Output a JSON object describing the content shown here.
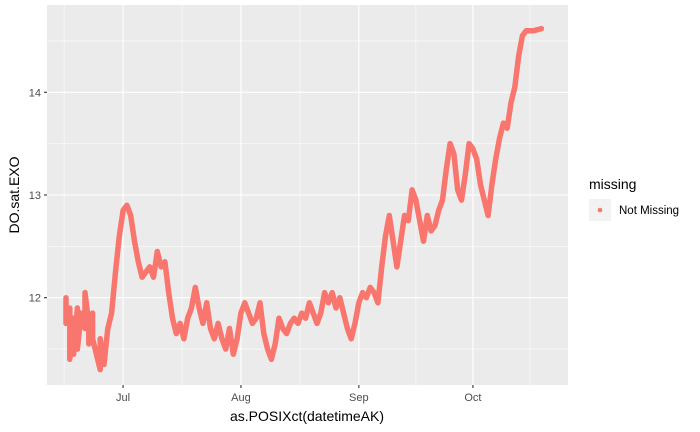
{
  "chart_data": {
    "type": "line",
    "xlabel": "as.POSIXct(datetimeAK)",
    "ylabel": "DO.sat.EXO",
    "x_ticks": [
      "Jul",
      "Aug",
      "Sep",
      "Oct"
    ],
    "x_tick_dates": [
      "2021-07-01",
      "2021-08-01",
      "2021-09-01",
      "2021-10-01"
    ],
    "xlim": [
      "2021-06-11",
      "2021-10-26"
    ],
    "y_ticks": [
      12,
      13,
      14
    ],
    "ylim": [
      11.15,
      14.85
    ],
    "grid": true,
    "legend": {
      "title": "missing",
      "placement": "right",
      "entries": [
        "Not Missing"
      ]
    },
    "series": [
      {
        "name": "Not Missing",
        "color": "#F8766D",
        "points": [
          [
            "2021-06-16",
            12.0
          ],
          [
            "2021-06-16",
            11.75
          ],
          [
            "2021-06-17",
            11.9
          ],
          [
            "2021-06-17",
            11.4
          ],
          [
            "2021-06-18",
            11.8
          ],
          [
            "2021-06-18",
            11.45
          ],
          [
            "2021-06-19",
            11.9
          ],
          [
            "2021-06-19",
            11.5
          ],
          [
            "2021-06-20",
            11.85
          ],
          [
            "2021-06-21",
            11.7
          ],
          [
            "2021-06-21",
            12.05
          ],
          [
            "2021-06-22",
            11.75
          ],
          [
            "2021-06-22",
            11.55
          ],
          [
            "2021-06-23",
            11.85
          ],
          [
            "2021-06-23",
            11.6
          ],
          [
            "2021-06-24",
            11.45
          ],
          [
            "2021-06-25",
            11.3
          ],
          [
            "2021-06-25",
            11.6
          ],
          [
            "2021-06-26",
            11.35
          ],
          [
            "2021-06-27",
            11.7
          ],
          [
            "2021-06-28",
            11.85
          ],
          [
            "2021-06-29",
            12.25
          ],
          [
            "2021-06-30",
            12.6
          ],
          [
            "2021-07-01",
            12.85
          ],
          [
            "2021-07-02",
            12.9
          ],
          [
            "2021-07-03",
            12.8
          ],
          [
            "2021-07-04",
            12.55
          ],
          [
            "2021-07-05",
            12.35
          ],
          [
            "2021-07-06",
            12.2
          ],
          [
            "2021-07-07",
            12.25
          ],
          [
            "2021-07-08",
            12.3
          ],
          [
            "2021-07-09",
            12.2
          ],
          [
            "2021-07-10",
            12.45
          ],
          [
            "2021-07-11",
            12.3
          ],
          [
            "2021-07-12",
            12.35
          ],
          [
            "2021-07-13",
            12.05
          ],
          [
            "2021-07-14",
            11.8
          ],
          [
            "2021-07-15",
            11.65
          ],
          [
            "2021-07-16",
            11.75
          ],
          [
            "2021-07-17",
            11.6
          ],
          [
            "2021-07-18",
            11.8
          ],
          [
            "2021-07-19",
            11.9
          ],
          [
            "2021-07-20",
            12.1
          ],
          [
            "2021-07-21",
            11.9
          ],
          [
            "2021-07-22",
            11.75
          ],
          [
            "2021-07-23",
            11.95
          ],
          [
            "2021-07-24",
            11.7
          ],
          [
            "2021-07-25",
            11.6
          ],
          [
            "2021-07-26",
            11.75
          ],
          [
            "2021-07-27",
            11.6
          ],
          [
            "2021-07-28",
            11.5
          ],
          [
            "2021-07-29",
            11.7
          ],
          [
            "2021-07-30",
            11.45
          ],
          [
            "2021-07-31",
            11.6
          ],
          [
            "2021-08-01",
            11.85
          ],
          [
            "2021-08-02",
            11.95
          ],
          [
            "2021-08-03",
            11.85
          ],
          [
            "2021-08-04",
            11.75
          ],
          [
            "2021-08-05",
            11.8
          ],
          [
            "2021-08-06",
            11.95
          ],
          [
            "2021-08-07",
            11.65
          ],
          [
            "2021-08-08",
            11.5
          ],
          [
            "2021-08-09",
            11.4
          ],
          [
            "2021-08-10",
            11.55
          ],
          [
            "2021-08-11",
            11.8
          ],
          [
            "2021-08-12",
            11.7
          ],
          [
            "2021-08-13",
            11.65
          ],
          [
            "2021-08-14",
            11.75
          ],
          [
            "2021-08-15",
            11.8
          ],
          [
            "2021-08-16",
            11.75
          ],
          [
            "2021-08-17",
            11.85
          ],
          [
            "2021-08-18",
            11.8
          ],
          [
            "2021-08-19",
            11.95
          ],
          [
            "2021-08-20",
            11.85
          ],
          [
            "2021-08-21",
            11.75
          ],
          [
            "2021-08-22",
            11.85
          ],
          [
            "2021-08-23",
            12.05
          ],
          [
            "2021-08-24",
            11.95
          ],
          [
            "2021-08-25",
            12.05
          ],
          [
            "2021-08-26",
            11.9
          ],
          [
            "2021-08-27",
            12.0
          ],
          [
            "2021-08-28",
            11.85
          ],
          [
            "2021-08-29",
            11.7
          ],
          [
            "2021-08-30",
            11.6
          ],
          [
            "2021-08-31",
            11.75
          ],
          [
            "2021-09-01",
            11.95
          ],
          [
            "2021-09-02",
            12.05
          ],
          [
            "2021-09-03",
            12.0
          ],
          [
            "2021-09-04",
            12.1
          ],
          [
            "2021-09-05",
            12.05
          ],
          [
            "2021-09-06",
            11.95
          ],
          [
            "2021-09-07",
            12.3
          ],
          [
            "2021-09-08",
            12.6
          ],
          [
            "2021-09-09",
            12.8
          ],
          [
            "2021-09-10",
            12.55
          ],
          [
            "2021-09-11",
            12.3
          ],
          [
            "2021-09-12",
            12.55
          ],
          [
            "2021-09-13",
            12.8
          ],
          [
            "2021-09-14",
            12.75
          ],
          [
            "2021-09-15",
            13.05
          ],
          [
            "2021-09-16",
            12.95
          ],
          [
            "2021-09-17",
            12.75
          ],
          [
            "2021-09-18",
            12.55
          ],
          [
            "2021-09-19",
            12.8
          ],
          [
            "2021-09-20",
            12.65
          ],
          [
            "2021-09-21",
            12.7
          ],
          [
            "2021-09-22",
            12.85
          ],
          [
            "2021-09-23",
            12.95
          ],
          [
            "2021-09-24",
            13.25
          ],
          [
            "2021-09-25",
            13.5
          ],
          [
            "2021-09-26",
            13.4
          ],
          [
            "2021-09-27",
            13.05
          ],
          [
            "2021-09-28",
            12.95
          ],
          [
            "2021-09-29",
            13.2
          ],
          [
            "2021-09-30",
            13.5
          ],
          [
            "2021-10-01",
            13.45
          ],
          [
            "2021-10-02",
            13.35
          ],
          [
            "2021-10-03",
            13.1
          ],
          [
            "2021-10-04",
            12.95
          ],
          [
            "2021-10-05",
            12.8
          ],
          [
            "2021-10-06",
            13.1
          ],
          [
            "2021-10-07",
            13.35
          ],
          [
            "2021-10-08",
            13.55
          ],
          [
            "2021-10-09",
            13.7
          ],
          [
            "2021-10-10",
            13.65
          ],
          [
            "2021-10-11",
            13.9
          ],
          [
            "2021-10-12",
            14.05
          ],
          [
            "2021-10-13",
            14.35
          ],
          [
            "2021-10-14",
            14.55
          ],
          [
            "2021-10-15",
            14.6
          ],
          [
            "2021-10-17",
            14.6
          ],
          [
            "2021-10-19",
            14.62
          ]
        ]
      }
    ]
  }
}
